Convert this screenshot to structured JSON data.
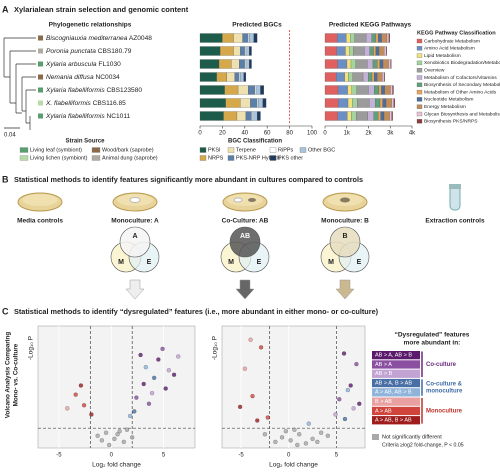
{
  "panel_a": {
    "label": "A",
    "title": "Xylarialean strain selection and genomic content",
    "phylo_header": "Phylogenetic relationships",
    "scale": "0.04",
    "strains": [
      {
        "name": "Biscogniauxia mediterranea",
        "strain": "AZ0048",
        "source": 2
      },
      {
        "name": "Poronia punctata",
        "strain": "CBS180.79",
        "source": 3
      },
      {
        "name": "Xylaria arbuscula",
        "strain": "FL1030",
        "source": 0
      },
      {
        "name": "Nemania diffusa",
        "strain": "NC0034",
        "source": 2
      },
      {
        "name": "Xylaria flabelliformis",
        "strain": "CBS123580",
        "source": 0
      },
      {
        "name": "X. flabelliformis",
        "strain": "CBS116.85",
        "source": 1
      },
      {
        "name": "Xylaria flabelliformis",
        "strain": "NC1011",
        "source": 0
      }
    ],
    "strain_source": {
      "title": "Strain Source",
      "items": [
        {
          "name": "Living leaf (symbiont)",
          "color": "#5a9e6f"
        },
        {
          "name": "Living lichen (symbiont)",
          "color": "#b8d9a8"
        },
        {
          "name": "Wood/bark (saprobe)",
          "color": "#8b6a4a"
        },
        {
          "name": "Animal dung (saprobe)",
          "color": "#b0aaa0"
        }
      ]
    },
    "bgc": {
      "type": "stacked_bar",
      "title": "Predicted BGCs",
      "legend_title": "BGC Classification",
      "xlim": [
        0,
        100
      ],
      "xticks": [
        0,
        20,
        40,
        60,
        80,
        100
      ],
      "reference_line": 80,
      "series": [
        {
          "name": "PKSI",
          "color": "#1d5c4a",
          "values": [
            20,
            18,
            17,
            15,
            22,
            23,
            21
          ]
        },
        {
          "name": "NRPS",
          "color": "#d4a84b",
          "values": [
            10,
            12,
            11,
            9,
            12,
            13,
            12
          ]
        },
        {
          "name": "Terpene",
          "color": "#efe0b0",
          "values": [
            8,
            6,
            7,
            7,
            9,
            9,
            8
          ]
        },
        {
          "name": "PKS-NRP Hybrids",
          "color": "#5b7fa8",
          "values": [
            5,
            4,
            5,
            4,
            6,
            6,
            5
          ]
        },
        {
          "name": "RiPPs",
          "color": "#ffffff",
          "values": [
            1,
            1,
            1,
            1,
            1,
            1,
            1
          ]
        },
        {
          "name": "Other BGC",
          "color": "#a8c4dc",
          "values": [
            4,
            3,
            3,
            3,
            4,
            4,
            4
          ]
        },
        {
          "name": "PKS other",
          "color": "#1f3a5f",
          "values": [
            3,
            2,
            2,
            2,
            3,
            3,
            3
          ]
        }
      ]
    },
    "kegg": {
      "type": "stacked_bar",
      "title": "Predicted KEGG Pathways",
      "legend_title": "KEGG Pathway Classification",
      "xlim": [
        0,
        4000
      ],
      "xticks": [
        0,
        {
          "value": 1000,
          "label": "1k"
        },
        {
          "value": 2000,
          "label": "2k"
        },
        {
          "value": 3000,
          "label": "3k"
        },
        {
          "value": 4000,
          "label": "4k"
        }
      ],
      "series": [
        {
          "name": "Carbohydrate Metabolism",
          "color": "#e06060",
          "values": [
            560,
            540,
            580,
            520,
            600,
            610,
            590
          ]
        },
        {
          "name": "Amino Acid Metabolism",
          "color": "#6b8fc4",
          "values": [
            420,
            400,
            430,
            390,
            440,
            450,
            435
          ]
        },
        {
          "name": "Lipid Metabolism",
          "color": "#f2e27a",
          "values": [
            180,
            170,
            185,
            165,
            190,
            195,
            188
          ]
        },
        {
          "name": "Xenobiotics Biodegradation/Metabolism",
          "color": "#a5d3a0",
          "values": [
            210,
            200,
            215,
            195,
            225,
            230,
            220
          ]
        },
        {
          "name": "Overview",
          "color": "#9b9b9b",
          "values": [
            520,
            500,
            530,
            480,
            540,
            550,
            535
          ]
        },
        {
          "name": "Metabolism of Cofactors/Vitamins",
          "color": "#c3b1d8",
          "values": [
            260,
            250,
            265,
            240,
            270,
            275,
            268
          ]
        },
        {
          "name": "Biosynthesis of Secondary Metabolites",
          "color": "#5fa07a",
          "values": [
            190,
            175,
            200,
            170,
            215,
            220,
            210
          ]
        },
        {
          "name": "Metabolism of Other Amino Acids",
          "color": "#e8a35c",
          "values": [
            110,
            105,
            112,
            100,
            115,
            118,
            114
          ]
        },
        {
          "name": "Nucleotide Metabolism",
          "color": "#4b6e9c",
          "values": [
            150,
            145,
            152,
            140,
            155,
            158,
            154
          ]
        },
        {
          "name": "Energy Metabolism",
          "color": "#c08c5a",
          "values": [
            250,
            240,
            255,
            235,
            260,
            262,
            258
          ]
        },
        {
          "name": "Glycan Biosynthesis and Metabolism",
          "color": "#e8c3d8",
          "values": [
            90,
            85,
            92,
            82,
            95,
            96,
            94
          ]
        },
        {
          "name": "Biosynthesis PKS/NRPS",
          "color": "#8c3d3d",
          "values": [
            40,
            30,
            35,
            30,
            45,
            48,
            44
          ]
        }
      ]
    }
  },
  "panel_b": {
    "label": "B",
    "title": "Statistical methods to identify features significantly more abundant in cultures compared to controls",
    "cultures": [
      "Media controls",
      "Monoculture: A",
      "Co-Culture: AB",
      "Monoculture: B",
      "Extraction controls"
    ],
    "venns": [
      {
        "top": "A",
        "left": "M",
        "right": "E"
      },
      {
        "top": "AB",
        "left": "M",
        "right": "E"
      },
      {
        "top": "B",
        "left": "M",
        "right": "E"
      }
    ]
  },
  "panel_c": {
    "label": "C",
    "title": "Statistical methods to identify “dysregulated” features (i.e., more abundant in either mono- or co-culture)",
    "side_label": [
      "Volcano Analysis Comparing",
      "Mono- vs. Co-culture"
    ],
    "ylabel": "-Log₁₀ P",
    "xlabel": "Log₂ fold change",
    "legend": {
      "title": [
        "“Dysregulated” features",
        "more abundant in:"
      ],
      "items": [
        {
          "name": "AB > A, AB > B",
          "color": "#5b1a6b"
        },
        {
          "name": "AB > A",
          "color": "#8a4fa0"
        },
        {
          "name": "AB > B",
          "color": "#c2a3d4"
        },
        {
          "name": "AB > A, B > AB",
          "color": "#4a6fa5"
        },
        {
          "name": "A > AB, AB > B",
          "color": "#8fb3d9"
        },
        {
          "name": "B > AB",
          "color": "#e8a0a0"
        },
        {
          "name": "A > AB",
          "color": "#d0443c"
        },
        {
          "name": "A > AB, B > AB",
          "color": "#9e1c1c"
        }
      ],
      "groups": [
        {
          "lines": [
            "Co-culture"
          ],
          "color": "#6a2a7e",
          "items": [
            0,
            1,
            2
          ]
        },
        {
          "lines": [
            "Co-culture &",
            "monoculture"
          ],
          "color": "#3f6aa5",
          "items": [
            3,
            4
          ]
        },
        {
          "lines": [
            "Monoculture"
          ],
          "color": "#c0322c",
          "items": [
            5,
            6,
            7
          ]
        }
      ],
      "not_significant": {
        "name": "Not significantly different",
        "color": "#a8a8a8"
      },
      "criteria": "Criteria ≥log2 fold-change, P < 0.05"
    },
    "volcanoes": [
      {
        "type": "scatter",
        "xlim": [
          -7,
          8
        ],
        "ylim": [
          0,
          8
        ],
        "xticks": [
          -5,
          0,
          5
        ],
        "thresholds_x": [
          -2,
          2
        ],
        "threshold_y": 1.3,
        "points": [
          [
            3.1,
            4.2,
            0
          ],
          [
            4.5,
            5.8,
            0
          ],
          [
            5.2,
            3.9,
            0
          ],
          [
            2.8,
            6.1,
            0
          ],
          [
            6.0,
            4.8,
            0
          ],
          [
            3.6,
            2.9,
            1
          ],
          [
            4.9,
            6.5,
            1
          ],
          [
            2.4,
            3.3,
            1
          ],
          [
            5.5,
            5.1,
            2
          ],
          [
            3.9,
            3.6,
            2
          ],
          [
            6.4,
            6.0,
            2
          ],
          [
            2.2,
            2.4,
            3
          ],
          [
            4.1,
            4.6,
            3
          ],
          [
            1.8,
            2.1,
            4
          ],
          [
            3.3,
            5.3,
            4
          ],
          [
            -2.6,
            2.8,
            6
          ],
          [
            -3.4,
            3.5,
            6
          ],
          [
            -1.9,
            2.2,
            7
          ],
          [
            -4.2,
            2.6,
            5
          ],
          [
            -2.9,
            4.1,
            7
          ],
          [
            0.3,
            0.6,
            8
          ],
          [
            -0.5,
            1.0,
            8
          ],
          [
            0.8,
            1.1,
            8
          ],
          [
            1.2,
            0.4,
            8
          ],
          [
            -0.9,
            0.5,
            8
          ],
          [
            -0.2,
            0.2,
            8
          ],
          [
            0.6,
            0.9,
            8
          ],
          [
            1.5,
            1.2,
            8
          ],
          [
            -1.3,
            0.8,
            8
          ],
          [
            2.0,
            0.7,
            8
          ]
        ]
      },
      {
        "type": "scatter",
        "xlim": [
          -7,
          8
        ],
        "ylim": [
          0,
          8
        ],
        "xticks": [
          -5,
          0,
          5
        ],
        "thresholds_x": [
          -2,
          5
        ],
        "threshold_y": 1.3,
        "points": [
          [
            5.8,
            6.2,
            0
          ],
          [
            6.5,
            4.1,
            0
          ],
          [
            7.1,
            5.5,
            1
          ],
          [
            5.3,
            3.2,
            1
          ],
          [
            6.8,
            2.6,
            2
          ],
          [
            4.9,
            2.2,
            2
          ],
          [
            5.9,
            1.9,
            3
          ],
          [
            6.2,
            3.8,
            4
          ],
          [
            7.4,
            2.9,
            0
          ],
          [
            -3.8,
            3.4,
            6
          ],
          [
            -4.6,
            5.2,
            5
          ],
          [
            -2.9,
            6.6,
            6
          ],
          [
            -5.1,
            2.7,
            7
          ],
          [
            -3.3,
            1.8,
            7
          ],
          [
            -4.0,
            7.1,
            5
          ],
          [
            2.1,
            1.6,
            4
          ],
          [
            -2.2,
            2.0,
            6
          ],
          [
            0.2,
            0.5,
            8
          ],
          [
            1.1,
            0.9,
            8
          ],
          [
            -0.7,
            0.7,
            8
          ],
          [
            0.6,
            1.2,
            8
          ],
          [
            -1.4,
            0.4,
            8
          ],
          [
            2.5,
            0.6,
            8
          ],
          [
            3.4,
            1.0,
            8
          ],
          [
            4.1,
            0.8,
            8
          ],
          [
            1.8,
            0.3,
            8
          ],
          [
            -2.5,
            0.9,
            8
          ],
          [
            3.0,
            0.4,
            8
          ],
          [
            0.9,
            0.2,
            8
          ],
          [
            -0.3,
            1.1,
            8
          ]
        ]
      }
    ]
  }
}
